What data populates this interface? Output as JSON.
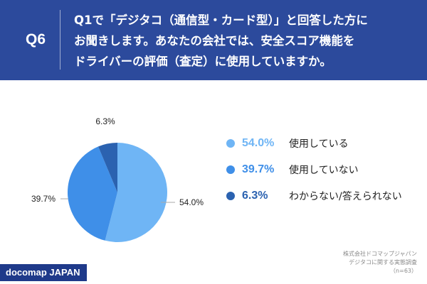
{
  "header": {
    "question_number": "Q6",
    "question_lines": [
      "Q1で「デジタコ（通信型・カード型）」と回答した方に",
      "お聞きします。あなたの会社では、安全スコア機能を",
      "ドライバーの評価（査定）に使用していますか。"
    ],
    "background_color": "#2c4a9c"
  },
  "chart_data": {
    "type": "pie",
    "categories": [
      "使用している",
      "使用していない",
      "わからない/答えられない"
    ],
    "values": [
      54.0,
      39.7,
      6.3
    ],
    "value_labels": [
      "54.0%",
      "39.7%",
      "6.3%"
    ],
    "colors": [
      "#6fb5f5",
      "#3f8fe8",
      "#2b62b0"
    ],
    "start_angle": "12 o'clock",
    "direction": "clockwise",
    "legend_position": "right"
  },
  "source": {
    "lines": [
      "株式会社ドコマップジャパン",
      "デジタコに関する実態調査",
      "（n=63）"
    ]
  },
  "logo": {
    "text": "docomap JAPAN"
  }
}
